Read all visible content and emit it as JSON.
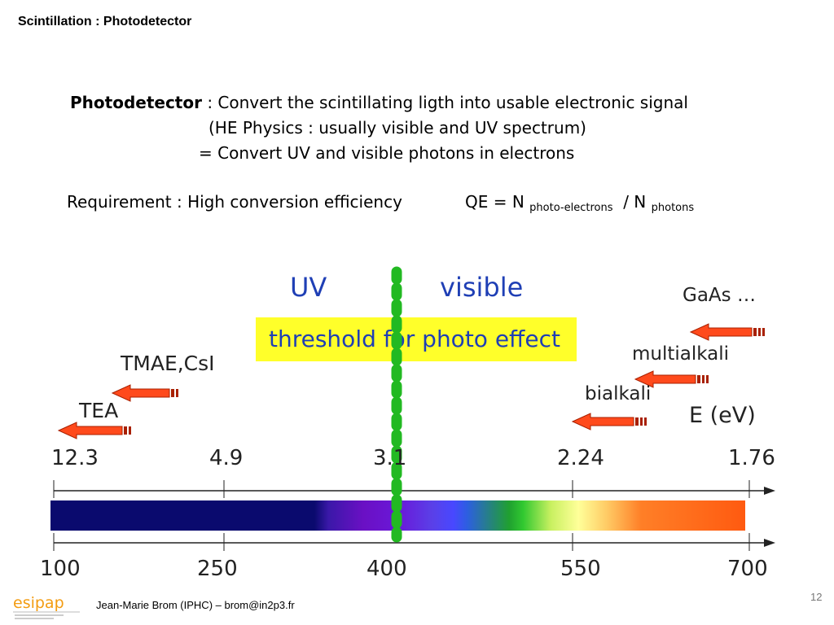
{
  "slide": {
    "title": "Scintillation : Photodetector",
    "definition_term": "Photodetector",
    "definition_text": " : Convert the scintillating ligth into usable electronic signal",
    "line2": "(HE Physics : usually visible and UV spectrum)",
    "line3": "= Convert UV and visible photons in electrons",
    "requirement": "Requirement :  High conversion efficiency",
    "qe_prefix": "QE = N ",
    "qe_sub1": "photo-electrons",
    "qe_mid": "  / N ",
    "qe_sub2": "photons"
  },
  "figure": {
    "uv_label": "UV",
    "visible_label": "visible",
    "threshold_label": "threshold for photo effect",
    "energy_unit_label": "E (eV)",
    "energy_ticks": [
      "12.3",
      "4.9",
      "3.1",
      "2.24",
      "1.76"
    ],
    "wavelength_ticks": [
      "100",
      "250",
      "400",
      "550",
      "700"
    ],
    "materials": {
      "gaas": "GaAs …",
      "multialkali": "multialkali",
      "bialkali": "bialkali",
      "tmae": "TMAE,CsI",
      "tea": "TEA"
    },
    "colors": {
      "uv_text": "#1f3fb5",
      "threshold_bg": "#ffff2a",
      "threshold_line": "#22b922",
      "arrow_fill": "#ff4a1c"
    }
  },
  "footer": {
    "logo_text": "esipap",
    "author": "Jean-Marie Brom (IPHC) – brom@in2p3.fr",
    "page_number": "12"
  }
}
